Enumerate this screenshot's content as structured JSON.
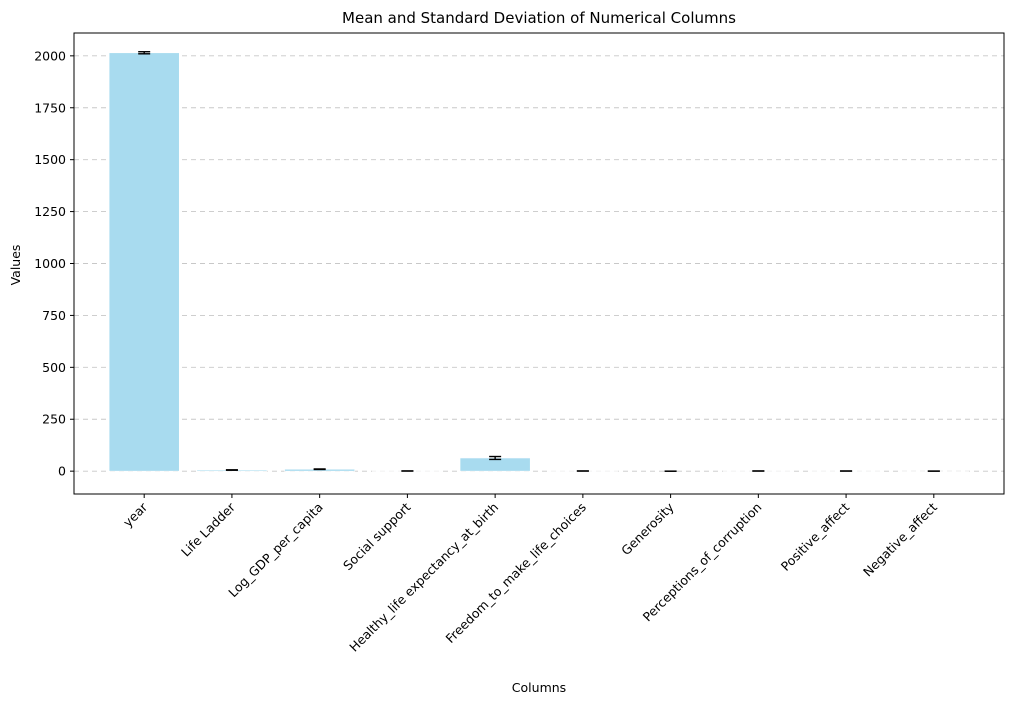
{
  "chart_data": {
    "type": "bar",
    "title": "Mean and Standard Deviation of Numerical Columns",
    "xlabel": "Columns",
    "ylabel": "Values",
    "categories": [
      "year",
      "Life Ladder",
      "Log_GDP_per_capita",
      "Social support",
      "Healthy_life expectancy_at_birth",
      "Freedom_to_make_life_choices",
      "Generosity",
      "Perceptions_of_corruption",
      "Positive_affect",
      "Negative_affect"
    ],
    "series": [
      {
        "values": [
          2014.8,
          5.5,
          9.4,
          0.81,
          63.5,
          0.75,
          0.0,
          0.74,
          0.65,
          0.27
        ],
        "errors": [
          5.0,
          1.1,
          1.2,
          0.12,
          7.0,
          0.14,
          0.16,
          0.19,
          0.11,
          0.09
        ]
      }
    ],
    "ylim": [
      -110,
      2110
    ],
    "yticks": [
      0,
      250,
      500,
      750,
      1000,
      1250,
      1500,
      1750,
      2000
    ],
    "grid": "y-dashed",
    "bar_color": "#a8dbef",
    "bar_edge_color": "#ffffff",
    "error_color": "#000000",
    "grid_color": "#c8c8c8"
  }
}
